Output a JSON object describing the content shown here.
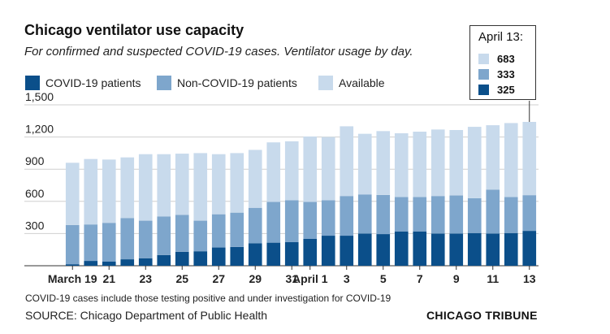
{
  "chart_data": {
    "type": "bar",
    "stacked": true,
    "title": "Chicago ventilator use capacity",
    "subtitle": "For confirmed and suspected COVID-19 cases. Ventilator usage by day.",
    "xlabel": "",
    "ylabel": "",
    "ylim": [
      0,
      1500
    ],
    "y_ticks": [
      "1,500",
      "1,200",
      "900",
      "600",
      "300"
    ],
    "y_tick_values": [
      1500,
      1200,
      900,
      600,
      300
    ],
    "grid": true,
    "legend_position": "top-left",
    "categories": [
      "March 19",
      "20",
      "21",
      "22",
      "23",
      "24",
      "25",
      "26",
      "27",
      "28",
      "29",
      "30",
      "31",
      "April 1",
      "2",
      "3",
      "4",
      "5",
      "6",
      "7",
      "8",
      "9",
      "10",
      "11",
      "12",
      "13"
    ],
    "x_tick_labels": [
      {
        "index": 0,
        "label": "March 19"
      },
      {
        "index": 2,
        "label": "21"
      },
      {
        "index": 4,
        "label": "23"
      },
      {
        "index": 6,
        "label": "25"
      },
      {
        "index": 8,
        "label": "27"
      },
      {
        "index": 10,
        "label": "29"
      },
      {
        "index": 12,
        "label": "31"
      },
      {
        "index": 13,
        "label": "April 1"
      },
      {
        "index": 15,
        "label": "3"
      },
      {
        "index": 17,
        "label": "5"
      },
      {
        "index": 19,
        "label": "7"
      },
      {
        "index": 21,
        "label": "9"
      },
      {
        "index": 23,
        "label": "11"
      },
      {
        "index": 25,
        "label": "13"
      }
    ],
    "series": [
      {
        "name": "COVID-19 patients",
        "color": "#0b4f8a",
        "values": [
          14,
          45,
          40,
          60,
          70,
          100,
          130,
          135,
          170,
          175,
          210,
          215,
          220,
          250,
          280,
          280,
          300,
          295,
          320,
          320,
          300,
          300,
          305,
          300,
          305,
          325
        ]
      },
      {
        "name": "Non-COVID-19 patients",
        "color": "#7ea6cc",
        "values": [
          366,
          340,
          360,
          385,
          350,
          360,
          345,
          285,
          310,
          320,
          330,
          380,
          390,
          345,
          330,
          370,
          365,
          365,
          320,
          320,
          350,
          355,
          325,
          410,
          335,
          333
        ]
      },
      {
        "name": "Available",
        "color": "#c8daec",
        "values": [
          580,
          610,
          590,
          565,
          620,
          580,
          570,
          630,
          560,
          555,
          540,
          555,
          550,
          610,
          590,
          650,
          565,
          595,
          595,
          610,
          620,
          610,
          665,
          600,
          690,
          683
        ]
      }
    ]
  },
  "legend": {
    "items": [
      {
        "label": "COVID-19 patients",
        "color": "#0b4f8a"
      },
      {
        "label": "Non-COVID-19 patients",
        "color": "#7ea6cc"
      },
      {
        "label": "Available",
        "color": "#c8daec"
      }
    ]
  },
  "callout": {
    "title": "April 13:",
    "rows": [
      {
        "value": "683",
        "color": "#c8daec"
      },
      {
        "value": "333",
        "color": "#7ea6cc"
      },
      {
        "value": "325",
        "color": "#0b4f8a"
      }
    ]
  },
  "footer": {
    "note": "COVID-19 cases include those testing positive and under investigation for COVID-19",
    "source": "SOURCE: Chicago Department of Public Health",
    "brand": "CHICAGO TRIBUNE"
  }
}
